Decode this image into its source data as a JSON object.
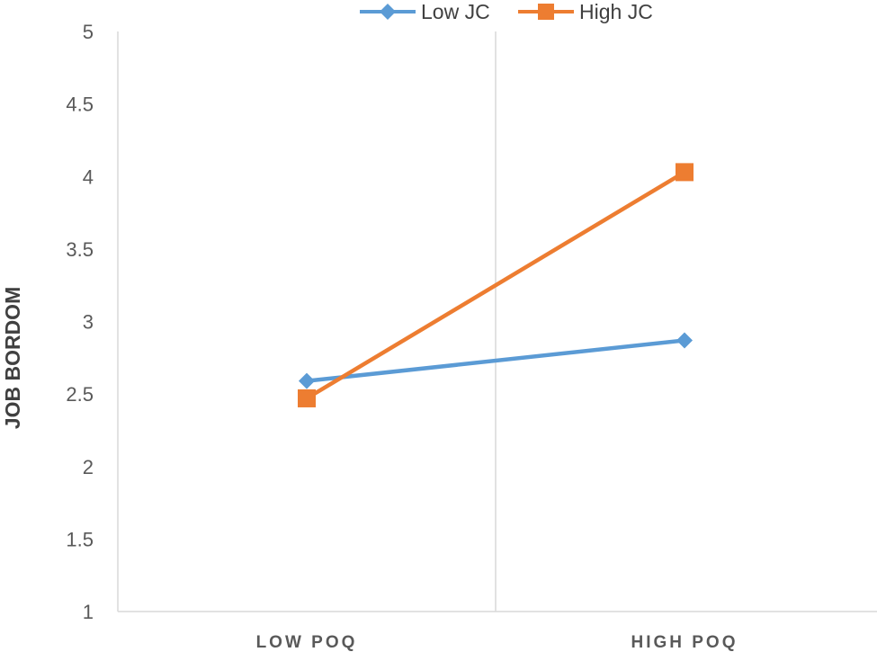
{
  "chart_data": {
    "type": "line",
    "title": "",
    "xlabel": "",
    "ylabel": "JOB BORDOM",
    "categories": [
      "LOW POQ",
      "HIGH POQ"
    ],
    "ylim": [
      1,
      5
    ],
    "yticks": [
      "1",
      "1.5",
      "2",
      "2.5",
      "3",
      "3.5",
      "4",
      "4.5",
      "5"
    ],
    "grid": false,
    "legend": "top-center",
    "series": [
      {
        "name": "Low JC",
        "values": [
          2.59,
          2.87
        ],
        "color": "#5B9BD5",
        "marker": "diamond"
      },
      {
        "name": "High JC",
        "values": [
          2.47,
          4.03
        ],
        "color": "#ED7D31",
        "marker": "square"
      }
    ]
  }
}
